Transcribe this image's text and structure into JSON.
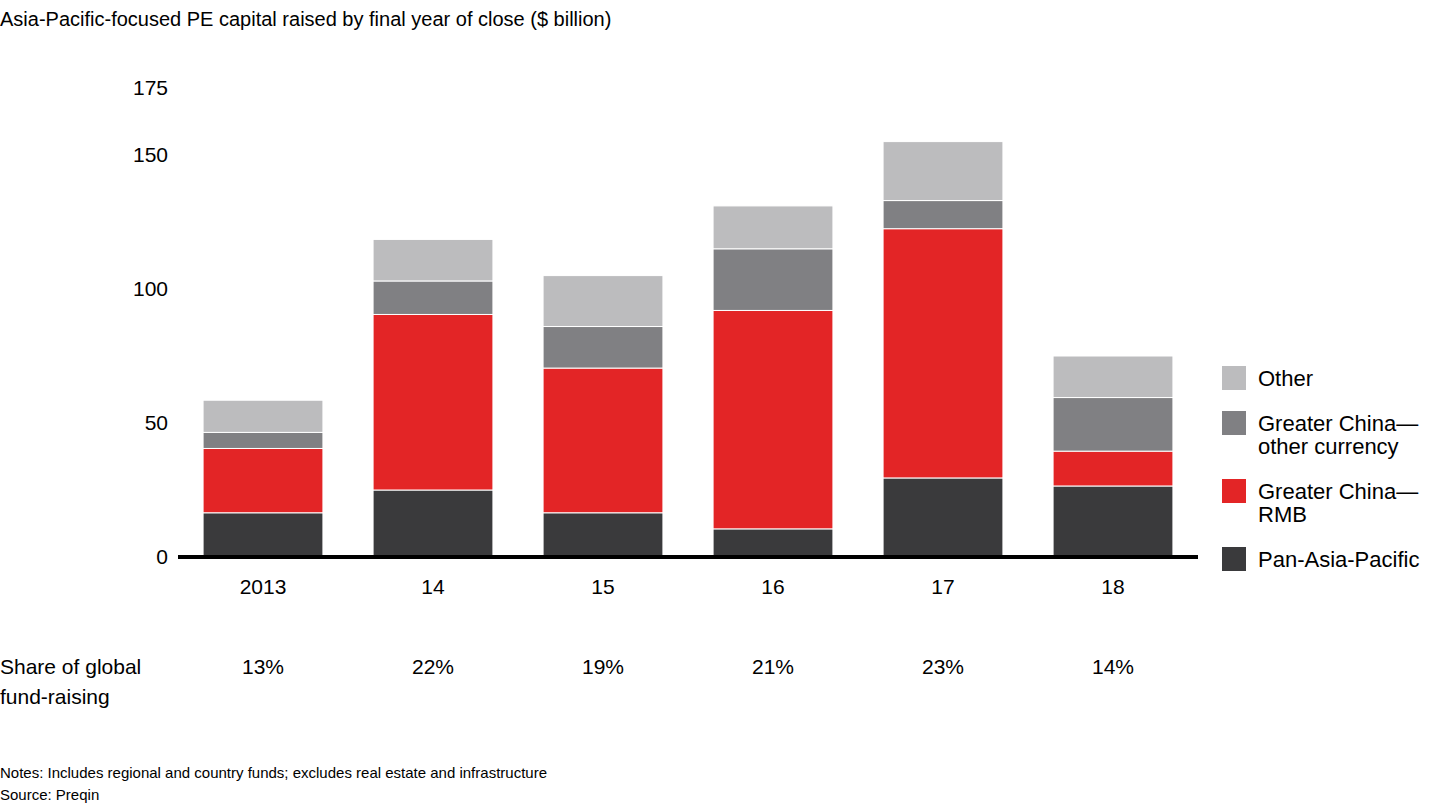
{
  "chart_data": {
    "type": "bar",
    "stacked": true,
    "title": "Asia-Pacific-focused PE capital raised by final year of close ($ billion)",
    "categories": [
      "2013",
      "14",
      "15",
      "16",
      "17",
      "18"
    ],
    "series": [
      {
        "name": "Pan-Asia-Pacific",
        "color": "#3a3a3c",
        "values": [
          16.5,
          25,
          16.5,
          10.5,
          29.5,
          26.5
        ]
      },
      {
        "name": "Greater China—RMB",
        "color": "#e32526",
        "values": [
          24,
          65.5,
          54,
          81.5,
          93,
          13
        ]
      },
      {
        "name": "Greater China—other currency",
        "color": "#808083",
        "values": [
          6,
          12.5,
          15.5,
          23,
          10.5,
          20
        ]
      },
      {
        "name": "Other",
        "color": "#bcbcbe",
        "values": [
          12,
          15.5,
          19,
          16,
          22,
          15.5
        ]
      }
    ],
    "ylim": [
      0,
      175
    ],
    "yticks": [
      0,
      50,
      100,
      150,
      175
    ],
    "grid": false,
    "legend": "right",
    "share_row": {
      "label": [
        "Share of global",
        "fund-raising"
      ],
      "values": [
        13,
        22,
        19,
        21,
        23,
        14
      ],
      "value_labels": [
        "13%",
        "22%",
        "19%",
        "21%",
        "23%",
        "14%"
      ]
    },
    "notes": "Notes: Includes regional and country funds; excludes real estate and infrastructure",
    "source": "Source: Preqin"
  }
}
